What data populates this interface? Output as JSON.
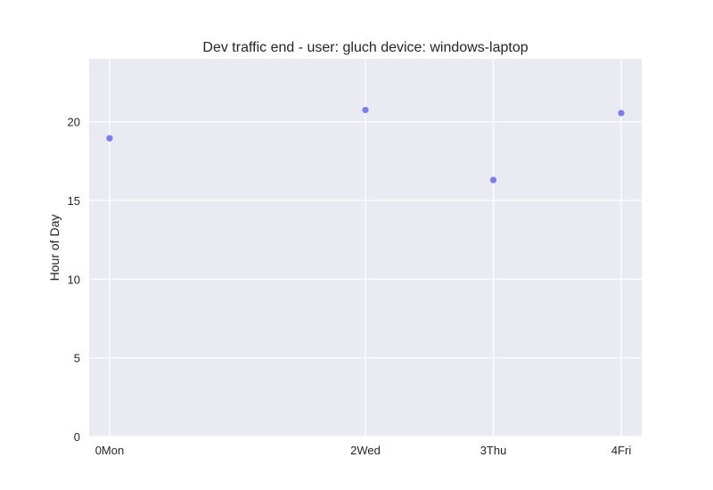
{
  "chart_data": {
    "type": "scatter",
    "title": "Dev traffic end - user: gluch device: windows-laptop",
    "xlabel": "",
    "ylabel": "Hour of Day",
    "categories": [
      "0Mon",
      "2Wed",
      "3Thu",
      "4Fri"
    ],
    "x": [
      0,
      2,
      3,
      4
    ],
    "xlim": [
      -0.16,
      4.16
    ],
    "yticks": [
      0,
      5,
      10,
      15,
      20
    ],
    "ylim": [
      0,
      24
    ],
    "series": [
      {
        "values": [
          18.95,
          20.75,
          16.3,
          20.55
        ]
      }
    ],
    "grid": true,
    "colors": {
      "background": "#eaeaf2",
      "grid": "#ffffff",
      "point": "#7b7fe6"
    }
  }
}
